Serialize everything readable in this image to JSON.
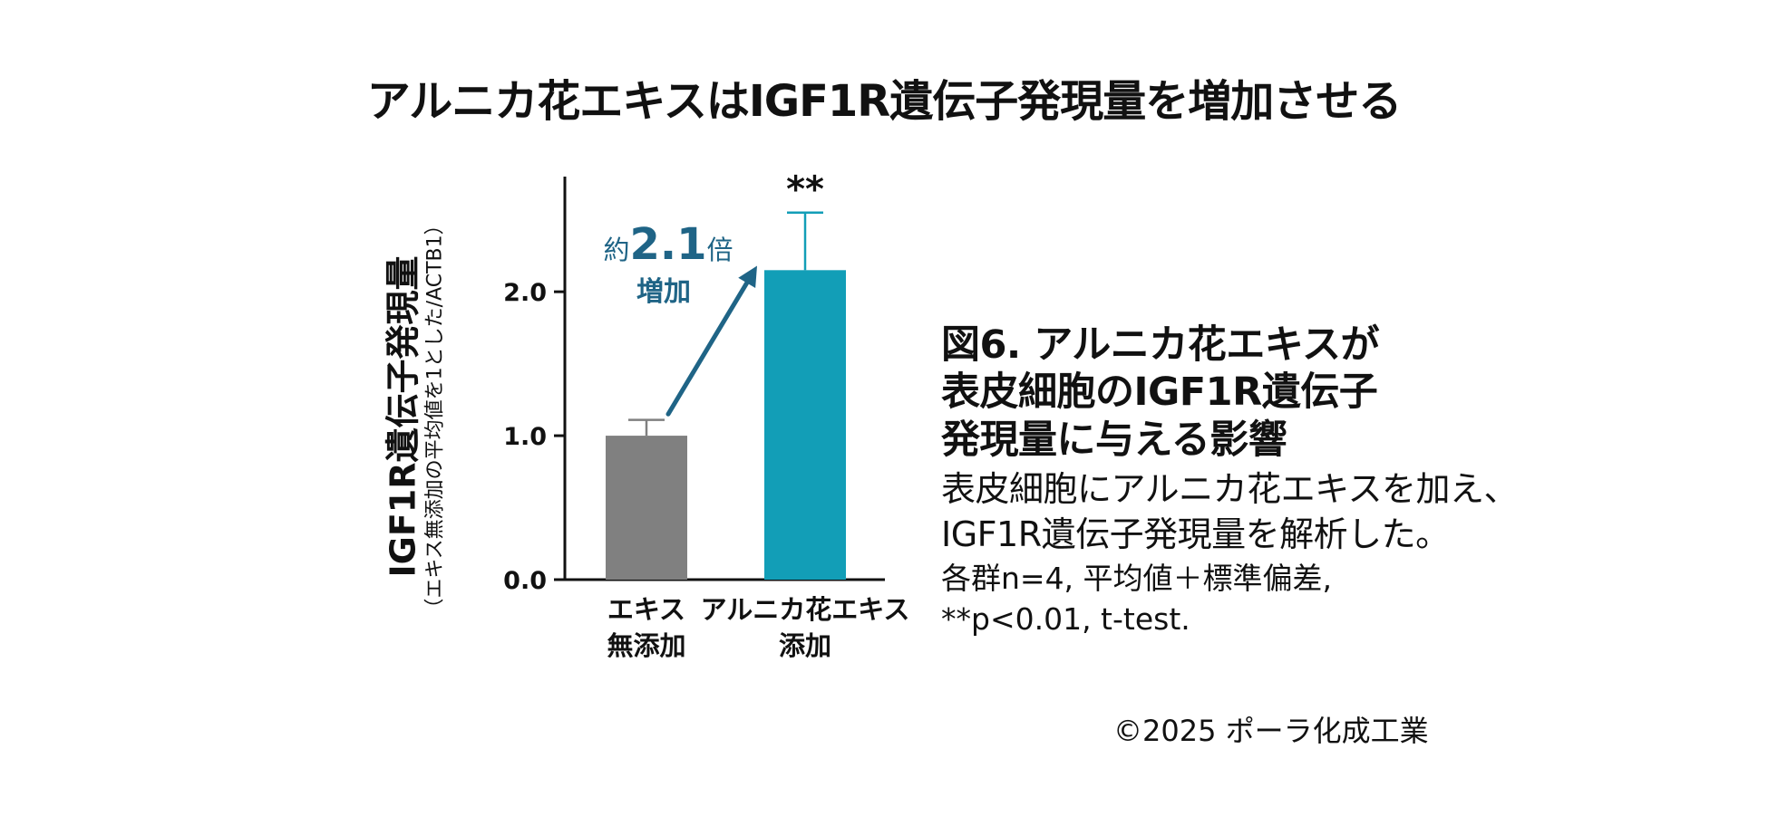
{
  "page": {
    "title": "アルニカ花エキスはIGF1R遺伝子発現量を増加させる",
    "caption": {
      "title_lines": [
        "図6. アルニカ花エキスが",
        "表皮細胞のIGF1R遺伝子",
        "発現量に与える影響"
      ],
      "desc_lines": [
        "表皮細胞にアルニカ花エキスを加え、",
        "IGF1R遺伝子発現量を解析した。"
      ],
      "note_line1": "各群n=4, 平均値＋標準偏差,",
      "note_line2": "**p<0.01, t-test."
    },
    "copyright": "©2025 ポーラ化成工業"
  },
  "chart_data": {
    "type": "bar",
    "ylabel": "IGF1R遺伝子発現量",
    "ylabel_sub": "（エキス無添加の平均値を1とした/ACTB1）",
    "categories": [
      {
        "lines": [
          "エキス",
          "無添加"
        ]
      },
      {
        "lines": [
          "アルニカ花エキス",
          "添加"
        ]
      }
    ],
    "values": [
      1.0,
      2.15
    ],
    "error": [
      0.11,
      0.4
    ],
    "colors": [
      "#808080",
      "#129eb7"
    ],
    "ylim": [
      0,
      2.8
    ],
    "yticks": [
      0.0,
      1.0,
      2.0
    ],
    "ytick_labels": [
      "0.0",
      "1.0",
      "2.0"
    ],
    "significance": "**",
    "annotation": {
      "prefix": "約",
      "value": "2.1",
      "suffix": "倍",
      "line2": "増加",
      "color": "#1f6486"
    }
  }
}
